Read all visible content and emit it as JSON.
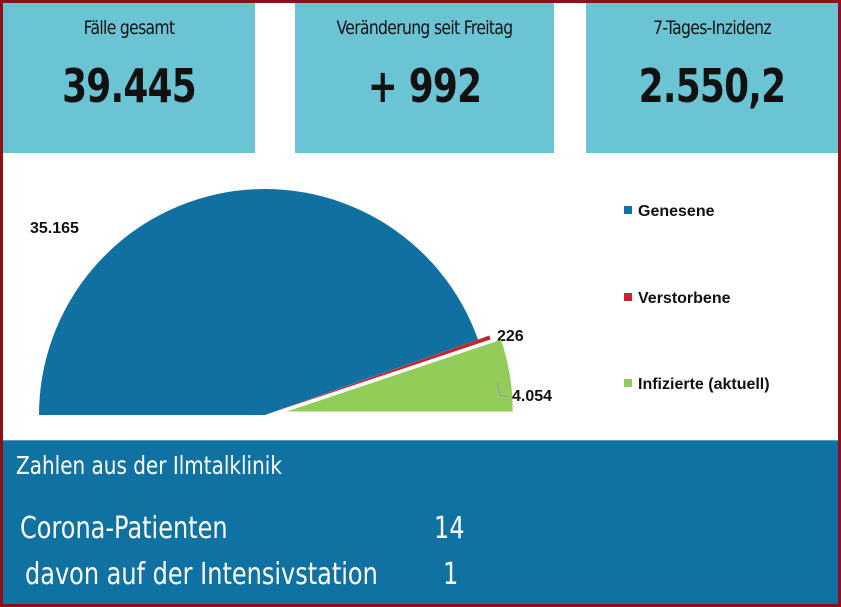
{
  "kpis": [
    {
      "label": "Fälle gesamt",
      "value": "39.445"
    },
    {
      "label": "Veränderung seit Freitag",
      "value": "+ 992"
    },
    {
      "label": "7-Tages-Inzidenz",
      "value": "2.550,2"
    }
  ],
  "chart_data": {
    "type": "pie",
    "variant": "half-pie (semicircle), exploded slices",
    "title": "",
    "slices": [
      {
        "name": "Genesene",
        "value": 35165,
        "label": "35.165",
        "color": "#1170a2"
      },
      {
        "name": "Verstorbene",
        "value": 226,
        "label": "226",
        "color": "#c0282e"
      },
      {
        "name": "Infizierte (aktuell)",
        "value": 4054,
        "label": "4.054",
        "color": "#92cd5a"
      }
    ],
    "legend": {
      "position": "right",
      "entries": [
        "Genesene",
        "Verstorbene",
        "Infizierte (aktuell)"
      ]
    }
  },
  "clinic": {
    "title": "Zahlen aus der Ilmtalklinik",
    "rows": [
      {
        "label": "Corona-Patienten",
        "value": "14"
      },
      {
        "label": "davon auf der Intensivstation",
        "value": "1"
      }
    ]
  }
}
